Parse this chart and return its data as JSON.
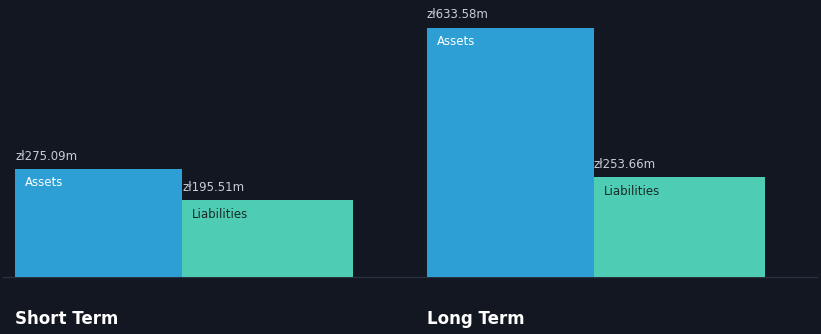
{
  "background_color": "#131722",
  "short_term": {
    "assets_value": 275.09,
    "liabilities_value": 195.51,
    "label": "Short Term"
  },
  "long_term": {
    "assets_value": 633.58,
    "liabilities_value": 253.66,
    "label": "Long Term"
  },
  "assets_color": "#2E9FD4",
  "liabilities_color": "#4ECDB4",
  "assets_label": "Assets",
  "liabilities_label": "Liabilities",
  "value_label_color": "#c8ccd4",
  "bar_label_color_assets": "#ffffff",
  "bar_label_color_liabilities": "#1a2a28",
  "group_label_color": "#ffffff",
  "currency_prefix": "zł",
  "currency_suffix": "m",
  "value_fontsize": 8.5,
  "bar_label_fontsize": 8.5,
  "group_label_fontsize": 12,
  "axis_line_color": "#2a2f3f"
}
